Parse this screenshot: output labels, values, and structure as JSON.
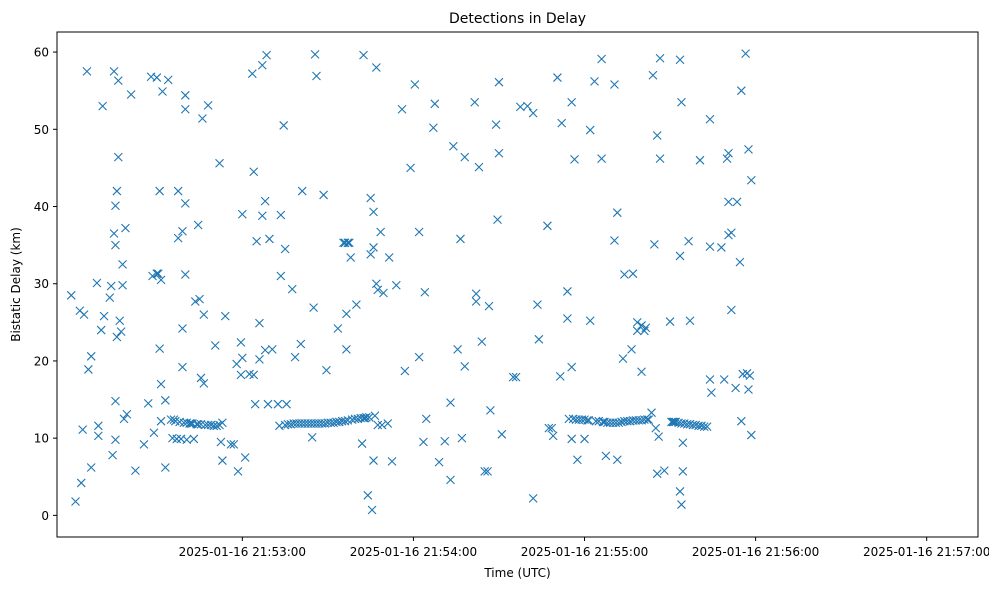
{
  "chart_data": {
    "type": "scatter",
    "title": "Detections in Delay",
    "xlabel": "Time (UTC)",
    "ylabel": "Bistatic Delay (km)",
    "marker": "x",
    "color": "#1f77b4",
    "x_unit": "seconds after 2025-01-16 21:52:00",
    "xlim": [
      -5,
      318
    ],
    "ylim": [
      -2.8,
      62.6
    ],
    "x_ticks": [
      {
        "value": 60,
        "label": "2025-01-16 21:53:00"
      },
      {
        "value": 120,
        "label": "2025-01-16 21:54:00"
      },
      {
        "value": 180,
        "label": "2025-01-16 21:55:00"
      },
      {
        "value": 240,
        "label": "2025-01-16 21:56:00"
      },
      {
        "value": 300,
        "label": "2025-01-16 21:57:00"
      }
    ],
    "y_ticks": [
      {
        "value": 0,
        "label": "0"
      },
      {
        "value": 10,
        "label": "10"
      },
      {
        "value": 20,
        "label": "20"
      },
      {
        "value": 30,
        "label": "30"
      },
      {
        "value": 40,
        "label": "40"
      },
      {
        "value": 50,
        "label": "50"
      },
      {
        "value": 60,
        "label": "60"
      }
    ],
    "points": [
      [
        0,
        28.5
      ],
      [
        1.5,
        1.8
      ],
      [
        3,
        26.5
      ],
      [
        3.5,
        4.2
      ],
      [
        4,
        11.1
      ],
      [
        4.5,
        26
      ],
      [
        5.5,
        57.5
      ],
      [
        6,
        18.9
      ],
      [
        7,
        20.6
      ],
      [
        7,
        6.2
      ],
      [
        9,
        30.1
      ],
      [
        9.5,
        11.6
      ],
      [
        9.5,
        10.3
      ],
      [
        10.5,
        24
      ],
      [
        11,
        53
      ],
      [
        11.5,
        25.8
      ],
      [
        13.5,
        28.2
      ],
      [
        14,
        29.7
      ],
      [
        14.5,
        7.8
      ],
      [
        15,
        57.5
      ],
      [
        15,
        36.5
      ],
      [
        15.5,
        35
      ],
      [
        15.5,
        40.1
      ],
      [
        15.5,
        14.8
      ],
      [
        15.5,
        9.8
      ],
      [
        16,
        42
      ],
      [
        16,
        23.1
      ],
      [
        16.5,
        46.4
      ],
      [
        16.5,
        56.3
      ],
      [
        17,
        25.2
      ],
      [
        17.5,
        23.8
      ],
      [
        18,
        29.8
      ],
      [
        18,
        32.5
      ],
      [
        18.5,
        12.5
      ],
      [
        19,
        37.2
      ],
      [
        19.5,
        13.1
      ],
      [
        21,
        54.5
      ],
      [
        22.5,
        5.8
      ],
      [
        25.5,
        9.2
      ],
      [
        27,
        14.5
      ],
      [
        28,
        56.8
      ],
      [
        28.5,
        31
      ],
      [
        29,
        10.7
      ],
      [
        30,
        56.7
      ],
      [
        30,
        31.3
      ],
      [
        30.5,
        31.3
      ],
      [
        31,
        21.6
      ],
      [
        31,
        42
      ],
      [
        31.5,
        30.5
      ],
      [
        31.5,
        17
      ],
      [
        31.5,
        12.2
      ],
      [
        32,
        54.9
      ],
      [
        33,
        14.9
      ],
      [
        33,
        6.2
      ],
      [
        34,
        56.4
      ],
      [
        35,
        12.4
      ],
      [
        35.5,
        10
      ],
      [
        36,
        12.4
      ],
      [
        36.5,
        12.2
      ],
      [
        37,
        9.9
      ],
      [
        37.5,
        42
      ],
      [
        37.5,
        35.9
      ],
      [
        38,
        12.1
      ],
      [
        38.5,
        9.9
      ],
      [
        39,
        36.8
      ],
      [
        39,
        24.2
      ],
      [
        39,
        19.2
      ],
      [
        39.5,
        12
      ],
      [
        40,
        54.4
      ],
      [
        40,
        52.6
      ],
      [
        40,
        40.4
      ],
      [
        40,
        31.2
      ],
      [
        40.5,
        12
      ],
      [
        40.5,
        9.8
      ],
      [
        41.5,
        11.9
      ],
      [
        42,
        11.9
      ],
      [
        42.5,
        11.9
      ],
      [
        43,
        9.9
      ],
      [
        43.5,
        27.7
      ],
      [
        44,
        11.8
      ],
      [
        44.5,
        37.6
      ],
      [
        44.5,
        11.8
      ],
      [
        45,
        28
      ],
      [
        45.5,
        17.8
      ],
      [
        45.5,
        11.8
      ],
      [
        46,
        51.4
      ],
      [
        46.5,
        26
      ],
      [
        46.5,
        17.1
      ],
      [
        47,
        11.7
      ],
      [
        48,
        53.1
      ],
      [
        48,
        11.7
      ],
      [
        49,
        11.7
      ],
      [
        50,
        11.6
      ],
      [
        50.5,
        22
      ],
      [
        51,
        11.6
      ],
      [
        52,
        45.6
      ],
      [
        52,
        11.7
      ],
      [
        52.5,
        9.5
      ],
      [
        53,
        7.1
      ],
      [
        53,
        12
      ],
      [
        54,
        25.8
      ],
      [
        56,
        9.2
      ],
      [
        57,
        9.2
      ],
      [
        58,
        19.6
      ],
      [
        58.5,
        5.7
      ],
      [
        59.5,
        22.4
      ],
      [
        59.5,
        18.2
      ],
      [
        60,
        39
      ],
      [
        60,
        20.4
      ],
      [
        61,
        7.5
      ],
      [
        62.5,
        18.3
      ],
      [
        63.5,
        57.2
      ],
      [
        64,
        44.5
      ],
      [
        64,
        18.2
      ],
      [
        64.5,
        14.4
      ],
      [
        65,
        35.5
      ],
      [
        66,
        24.9
      ],
      [
        66,
        20.2
      ],
      [
        67,
        58.3
      ],
      [
        67,
        38.8
      ],
      [
        68,
        40.7
      ],
      [
        68,
        21.4
      ],
      [
        68.5,
        59.6
      ],
      [
        69,
        14.4
      ],
      [
        69.5,
        35.8
      ],
      [
        70.5,
        21.5
      ],
      [
        72.5,
        14.4
      ],
      [
        73,
        11.6
      ],
      [
        73.5,
        38.9
      ],
      [
        73.5,
        31
      ],
      [
        74.5,
        50.5
      ],
      [
        75,
        34.5
      ],
      [
        75,
        11.7
      ],
      [
        75.5,
        14.4
      ],
      [
        76,
        11.8
      ],
      [
        77,
        11.8
      ],
      [
        77.5,
        29.3
      ],
      [
        78,
        11.9
      ],
      [
        78.5,
        20.5
      ],
      [
        79,
        11.9
      ],
      [
        80,
        11.9
      ],
      [
        80.5,
        22.2
      ],
      [
        81,
        42
      ],
      [
        81,
        11.9
      ],
      [
        82,
        11.9
      ],
      [
        83,
        11.9
      ],
      [
        84,
        11.9
      ],
      [
        84.5,
        10.1
      ],
      [
        85,
        11.9
      ],
      [
        85,
        26.9
      ],
      [
        85.5,
        59.7
      ],
      [
        86,
        56.9
      ],
      [
        86,
        11.9
      ],
      [
        87,
        11.9
      ],
      [
        88,
        11.9
      ],
      [
        88.5,
        41.5
      ],
      [
        89,
        11.9
      ],
      [
        89.5,
        18.8
      ],
      [
        90,
        12
      ],
      [
        91,
        12
      ],
      [
        92,
        12
      ],
      [
        93,
        12.1
      ],
      [
        93.5,
        24.2
      ],
      [
        94,
        12.1
      ],
      [
        95,
        12.2
      ],
      [
        95.5,
        35.3
      ],
      [
        96,
        35.3
      ],
      [
        96,
        12.2
      ],
      [
        96.5,
        26.1
      ],
      [
        96.5,
        21.5
      ],
      [
        97,
        35.3
      ],
      [
        97,
        12.3
      ],
      [
        97.5,
        35.3
      ],
      [
        98,
        33.4
      ],
      [
        98.5,
        12.4
      ],
      [
        99.5,
        12.5
      ],
      [
        100,
        27.3
      ],
      [
        100.5,
        12.5
      ],
      [
        101.5,
        12.6
      ],
      [
        102,
        9.3
      ],
      [
        102.5,
        59.6
      ],
      [
        102.5,
        12.6
      ],
      [
        103,
        12.6
      ],
      [
        103.5,
        12.7
      ],
      [
        104,
        2.6
      ],
      [
        104.5,
        12.7
      ],
      [
        105,
        33.8
      ],
      [
        105,
        41.1
      ],
      [
        105.5,
        0.7
      ],
      [
        106,
        7.1
      ],
      [
        106,
        39.3
      ],
      [
        106,
        34.7
      ],
      [
        106.5,
        12.9
      ],
      [
        107,
        58
      ],
      [
        107,
        30
      ],
      [
        107.5,
        29.2
      ],
      [
        107.5,
        11.7
      ],
      [
        108.5,
        36.7
      ],
      [
        109,
        11.7
      ],
      [
        109.5,
        28.8
      ],
      [
        111,
        11.9
      ],
      [
        111.5,
        33.4
      ],
      [
        112.5,
        7
      ],
      [
        114,
        29.8
      ],
      [
        116,
        52.6
      ],
      [
        117,
        18.7
      ],
      [
        119,
        45
      ],
      [
        120.5,
        55.8
      ],
      [
        122,
        20.5
      ],
      [
        122,
        36.7
      ],
      [
        123.5,
        9.5
      ],
      [
        124,
        28.9
      ],
      [
        124.5,
        12.5
      ],
      [
        127,
        50.2
      ],
      [
        127.5,
        53.3
      ],
      [
        129,
        6.9
      ],
      [
        131,
        9.6
      ],
      [
        133,
        4.6
      ],
      [
        133,
        14.6
      ],
      [
        134,
        47.8
      ],
      [
        135.5,
        21.5
      ],
      [
        136.5,
        35.8
      ],
      [
        137,
        10
      ],
      [
        138,
        19.3
      ],
      [
        138,
        46.4
      ],
      [
        141.5,
        53.5
      ],
      [
        142,
        28.7
      ],
      [
        142,
        27.7
      ],
      [
        143,
        45.1
      ],
      [
        144,
        22.5
      ],
      [
        145,
        5.7
      ],
      [
        146,
        5.7
      ],
      [
        146.5,
        27.1
      ],
      [
        147,
        13.6
      ],
      [
        149,
        50.6
      ],
      [
        149.5,
        38.3
      ],
      [
        150,
        56.1
      ],
      [
        150,
        46.9
      ],
      [
        151,
        10.5
      ],
      [
        155,
        17.9
      ],
      [
        156,
        17.9
      ],
      [
        157.5,
        52.9
      ],
      [
        160,
        53
      ],
      [
        162,
        52.1
      ],
      [
        162,
        2.2
      ],
      [
        163.5,
        27.3
      ],
      [
        164,
        22.8
      ],
      [
        167,
        37.5
      ],
      [
        167.5,
        11.3
      ],
      [
        168.5,
        11.3
      ],
      [
        169,
        10.3
      ],
      [
        170.5,
        56.7
      ],
      [
        171.5,
        18
      ],
      [
        172,
        50.8
      ],
      [
        174,
        29
      ],
      [
        174,
        25.5
      ],
      [
        174.5,
        12.5
      ],
      [
        175.5,
        53.5
      ],
      [
        175.5,
        19.2
      ],
      [
        175.5,
        9.9
      ],
      [
        176,
        12.5
      ],
      [
        176.5,
        46.1
      ],
      [
        177,
        12.4
      ],
      [
        177.5,
        7.2
      ],
      [
        178,
        12.4
      ],
      [
        179,
        12.4
      ],
      [
        180,
        12.4
      ],
      [
        180,
        9.9
      ],
      [
        181,
        12.3
      ],
      [
        181.5,
        12.3
      ],
      [
        182,
        49.9
      ],
      [
        182,
        25.2
      ],
      [
        183.5,
        56.2
      ],
      [
        184,
        12.2
      ],
      [
        185,
        12.2
      ],
      [
        186,
        59.1
      ],
      [
        186,
        46.2
      ],
      [
        186.5,
        12.1
      ],
      [
        187,
        12.1
      ],
      [
        187.5,
        7.7
      ],
      [
        188,
        12
      ],
      [
        189,
        12
      ],
      [
        190,
        12
      ],
      [
        190.5,
        35.6
      ],
      [
        190.5,
        55.8
      ],
      [
        191,
        12
      ],
      [
        191.5,
        39.2
      ],
      [
        191.5,
        7.2
      ],
      [
        192,
        12
      ],
      [
        193,
        12.1
      ],
      [
        193.5,
        20.3
      ],
      [
        194,
        31.2
      ],
      [
        194,
        12.2
      ],
      [
        195,
        12.2
      ],
      [
        196,
        12.2
      ],
      [
        196.5,
        21.5
      ],
      [
        197,
        31.3
      ],
      [
        197,
        12.3
      ],
      [
        198,
        12.3
      ],
      [
        198.5,
        25
      ],
      [
        198.5,
        23.9
      ],
      [
        199,
        12.3
      ],
      [
        200,
        24.6
      ],
      [
        200,
        18.6
      ],
      [
        200,
        12.3
      ],
      [
        201,
        23.9
      ],
      [
        201,
        12.4
      ],
      [
        201.5,
        24.3
      ],
      [
        202,
        12.4
      ],
      [
        202.5,
        12.4
      ],
      [
        203.5,
        13.3
      ],
      [
        204,
        57
      ],
      [
        204.5,
        35.1
      ],
      [
        205,
        11.3
      ],
      [
        205.5,
        49.2
      ],
      [
        205.5,
        5.4
      ],
      [
        206,
        10.2
      ],
      [
        206.5,
        46.2
      ],
      [
        206.5,
        59.2
      ],
      [
        208,
        5.8
      ],
      [
        210,
        25.1
      ],
      [
        210.5,
        12.1
      ],
      [
        211,
        12.1
      ],
      [
        211.5,
        12.1
      ],
      [
        212,
        12.1
      ],
      [
        213,
        12
      ],
      [
        213.5,
        59
      ],
      [
        213.5,
        33.6
      ],
      [
        213.5,
        3.1
      ],
      [
        214,
        1.4
      ],
      [
        214,
        53.5
      ],
      [
        214,
        11.9
      ],
      [
        214.5,
        5.7
      ],
      [
        214.5,
        9.4
      ],
      [
        215,
        11.9
      ],
      [
        216,
        11.8
      ],
      [
        216.5,
        35.5
      ],
      [
        217,
        11.8
      ],
      [
        217,
        25.2
      ],
      [
        218,
        11.7
      ],
      [
        219,
        11.7
      ],
      [
        220,
        11.6
      ],
      [
        220.5,
        46
      ],
      [
        221,
        11.6
      ],
      [
        222,
        11.5
      ],
      [
        223,
        11.5
      ],
      [
        224,
        51.3
      ],
      [
        224,
        34.8
      ],
      [
        224,
        17.6
      ],
      [
        224.5,
        15.9
      ],
      [
        228,
        34.7
      ],
      [
        229,
        17.6
      ],
      [
        230,
        46.2
      ],
      [
        230.5,
        46.9
      ],
      [
        230.5,
        40.6
      ],
      [
        230.5,
        36.3
      ],
      [
        231.5,
        36.6
      ],
      [
        231.5,
        26.6
      ],
      [
        233,
        16.5
      ],
      [
        233.5,
        40.6
      ],
      [
        234.5,
        32.8
      ],
      [
        235,
        55
      ],
      [
        235,
        12.2
      ],
      [
        235.5,
        18.3
      ],
      [
        236.5,
        59.8
      ],
      [
        237,
        18.4
      ],
      [
        237.5,
        47.4
      ],
      [
        237.5,
        16.3
      ],
      [
        238,
        18.1
      ],
      [
        238.5,
        43.4
      ],
      [
        238.5,
        10.4
      ]
    ]
  }
}
